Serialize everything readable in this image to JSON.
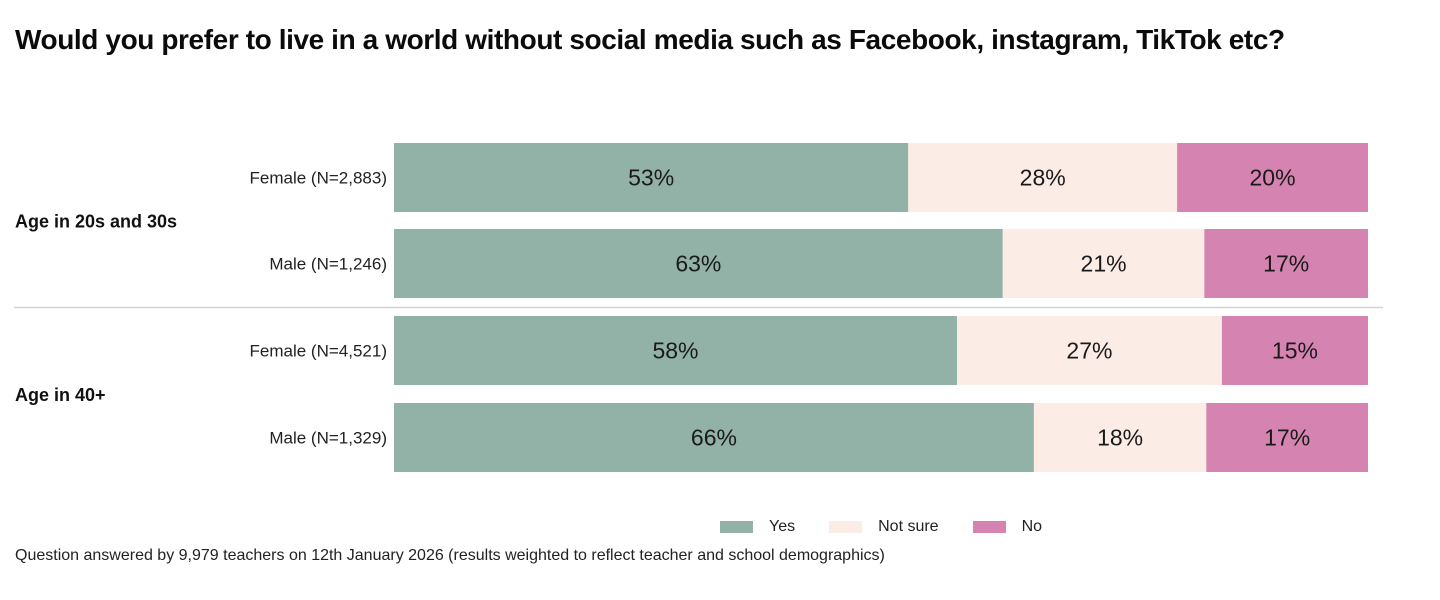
{
  "title": "Would you prefer to live in a world without social media such as Facebook, instagram, TikTok etc?",
  "footnote": "Question answered by 9,979 teachers on 12th January 2026 (results weighted to reflect teacher and school demographics)",
  "chart_data": {
    "type": "bar",
    "orientation": "horizontal",
    "stacked": "100%",
    "title": "Would you prefer to live in a world without social media such as Facebook, instagram, TikTok etc?",
    "xlabel": "",
    "ylabel": "",
    "xlim": [
      0,
      100
    ],
    "grid": false,
    "legend_position": "bottom-center",
    "groups": [
      {
        "label": "Age in 20s and 30s",
        "categories": [
          "Female (N=2,883)",
          "Male (N=1,246)"
        ]
      },
      {
        "label": "Age in 40+",
        "categories": [
          "Female (N=4,521)",
          "Male (N=1,329)"
        ]
      }
    ],
    "categories": [
      "Female (N=2,883)",
      "Male (N=1,246)",
      "Female (N=4,521)",
      "Male (N=1,329)"
    ],
    "series": [
      {
        "name": "Yes",
        "color": "#92b1a7",
        "values": [
          52.8,
          62.5,
          57.8,
          65.7
        ],
        "labels": [
          "53%",
          "63%",
          "58%",
          "66%"
        ]
      },
      {
        "name": "Not sure",
        "color": "#fbece5",
        "values": [
          27.6,
          20.7,
          27.2,
          17.7
        ],
        "labels": [
          "28%",
          "21%",
          "27%",
          "18%"
        ]
      },
      {
        "name": "No",
        "color": "#d583b0",
        "values": [
          19.6,
          16.8,
          15.0,
          16.6
        ],
        "labels": [
          "20%",
          "17%",
          "15%",
          "17%"
        ]
      }
    ]
  }
}
